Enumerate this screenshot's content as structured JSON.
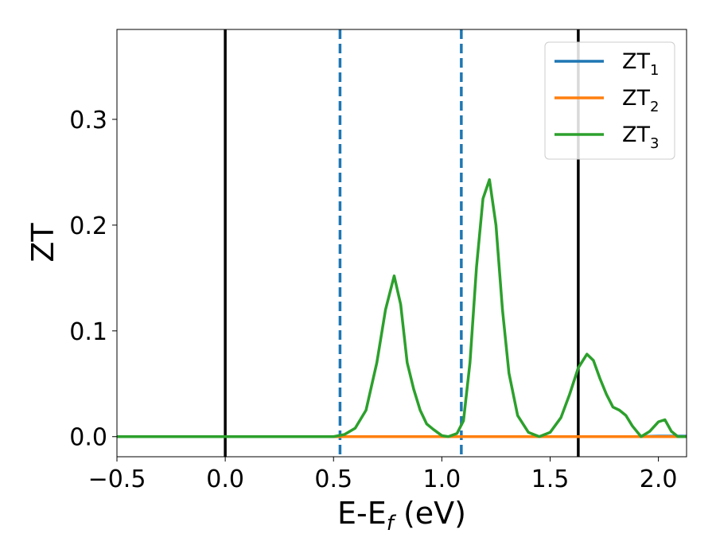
{
  "chart_data": {
    "type": "line",
    "xlabel_main": "E-E",
    "xlabel_sub": "f",
    "xlabel_unit": " (eV)",
    "ylabel": "ZT",
    "xlim": [
      -0.5,
      2.13
    ],
    "ylim": [
      -0.019,
      0.385
    ],
    "grid": false,
    "x_ticks": [
      {
        "value": -0.5,
        "label": "−0.5"
      },
      {
        "value": 0.0,
        "label": "0.0"
      },
      {
        "value": 0.5,
        "label": "0.5"
      },
      {
        "value": 1.0,
        "label": "1.0"
      },
      {
        "value": 1.5,
        "label": "1.5"
      },
      {
        "value": 2.0,
        "label": "2.0"
      }
    ],
    "y_ticks": [
      {
        "value": 0.0,
        "label": "0.0"
      },
      {
        "value": 0.1,
        "label": "0.1"
      },
      {
        "value": 0.2,
        "label": "0.2"
      },
      {
        "value": 0.3,
        "label": "0.3"
      }
    ],
    "vertical_lines": [
      {
        "x": 0.0,
        "style": "solid",
        "color": "#000000"
      },
      {
        "x": 0.53,
        "style": "dashed",
        "color": "#1f77b4"
      },
      {
        "x": 1.09,
        "style": "dashed",
        "color": "#1f77b4"
      },
      {
        "x": 1.63,
        "style": "solid",
        "color": "#000000"
      }
    ],
    "legend_placement": "top-right",
    "series": [
      {
        "name_main": "ZT",
        "name_sub": "1",
        "color": "#1f77b4",
        "x": [
          -0.5,
          0.0,
          0.5,
          1.0,
          1.5,
          1.9,
          2.0,
          2.13
        ],
        "y": [
          0.0,
          0.0,
          0.0,
          0.0,
          0.0,
          0.0,
          0.0005,
          0.0005
        ]
      },
      {
        "name_main": "ZT",
        "name_sub": "2",
        "color": "#ff7f0e",
        "x": [
          -0.5,
          2.13
        ],
        "y": [
          0.0,
          0.0
        ]
      },
      {
        "name_main": "ZT",
        "name_sub": "3",
        "color": "#2ca02c",
        "x": [
          -0.5,
          0.0,
          0.5,
          0.55,
          0.6,
          0.65,
          0.7,
          0.74,
          0.78,
          0.81,
          0.84,
          0.87,
          0.9,
          0.93,
          0.96,
          1.0,
          1.03,
          1.07,
          1.1,
          1.13,
          1.16,
          1.19,
          1.22,
          1.25,
          1.28,
          1.31,
          1.35,
          1.4,
          1.45,
          1.5,
          1.55,
          1.59,
          1.63,
          1.67,
          1.7,
          1.73,
          1.76,
          1.79,
          1.82,
          1.85,
          1.88,
          1.92,
          1.96,
          2.0,
          2.03,
          2.06,
          2.09,
          2.13
        ],
        "y": [
          0.0,
          0.0,
          0.0,
          0.002,
          0.008,
          0.025,
          0.07,
          0.12,
          0.152,
          0.125,
          0.07,
          0.045,
          0.025,
          0.012,
          0.007,
          0.001,
          0.0,
          0.003,
          0.015,
          0.07,
          0.16,
          0.225,
          0.243,
          0.2,
          0.12,
          0.06,
          0.02,
          0.004,
          0.0,
          0.004,
          0.018,
          0.04,
          0.065,
          0.078,
          0.072,
          0.055,
          0.04,
          0.028,
          0.025,
          0.02,
          0.01,
          0.0,
          0.005,
          0.014,
          0.016,
          0.005,
          0.0,
          0.0
        ]
      }
    ]
  }
}
